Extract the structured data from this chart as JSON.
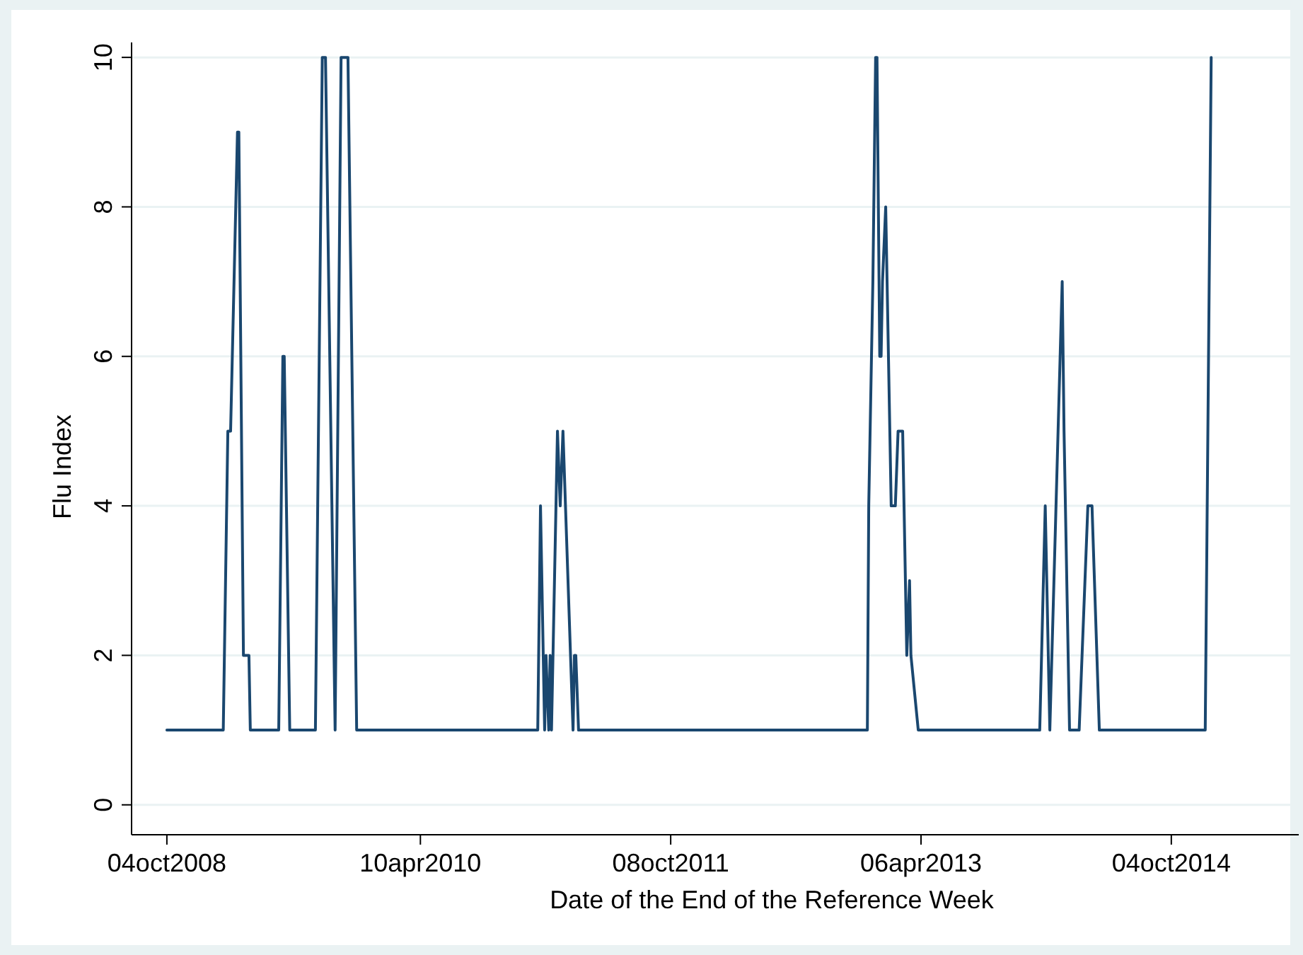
{
  "chart_data": {
    "type": "line",
    "xlabel": "Date of the End of the Reference Week",
    "ylabel": "Flu Index",
    "x": [
      "2008-10-04",
      "2009-02-04",
      "2009-02-14",
      "2009-02-20",
      "2009-03-07",
      "2009-03-10",
      "2009-03-20",
      "2009-04-01",
      "2009-04-04",
      "2009-06-05",
      "2009-06-14",
      "2009-06-17",
      "2009-06-29",
      "2009-08-24",
      "2009-09-08",
      "2009-09-15",
      "2009-10-06",
      "2009-10-19",
      "2009-11-03",
      "2009-11-22",
      "2010-12-22",
      "2010-12-28",
      "2011-01-06",
      "2011-01-09",
      "2011-01-15",
      "2011-01-18",
      "2011-01-21",
      "2011-02-03",
      "2011-02-09",
      "2011-02-15",
      "2011-03-09",
      "2011-03-12",
      "2011-03-15",
      "2011-03-21",
      "2012-12-10",
      "2012-12-13",
      "2012-12-22",
      "2012-12-28",
      "2012-12-31",
      "2013-01-03",
      "2013-01-06",
      "2013-01-09",
      "2013-01-12",
      "2013-01-19",
      "2013-01-22",
      "2013-01-28",
      "2013-01-31",
      "2013-02-09",
      "2013-02-15",
      "2013-02-25",
      "2013-02-28",
      "2013-03-06",
      "2013-03-12",
      "2013-03-15",
      "2013-03-31",
      "2013-12-21",
      "2014-01-02",
      "2014-01-12",
      "2014-01-21",
      "2014-01-30",
      "2014-02-08",
      "2014-02-12",
      "2014-02-24",
      "2014-03-17",
      "2014-04-05",
      "2014-04-14",
      "2014-04-30",
      "2014-12-17",
      "2014-12-30"
    ],
    "series": [
      {
        "color": "#1a476f",
        "values": [
          1,
          1,
          5,
          5,
          9,
          9,
          2,
          2,
          1,
          1,
          6,
          6,
          1,
          1,
          10,
          10,
          1,
          10,
          10,
          1,
          1,
          4,
          1,
          2,
          1,
          2,
          1,
          5,
          4,
          5,
          1,
          2,
          2,
          1,
          1,
          4,
          7,
          10,
          10,
          8,
          6,
          6,
          7,
          8,
          7,
          5,
          4,
          4,
          5,
          5,
          4,
          2,
          3,
          2,
          1,
          1,
          4,
          1,
          3,
          5,
          7,
          5,
          1,
          1,
          4,
          4,
          1,
          1,
          10
        ]
      }
    ],
    "xlim": [
      "2008-07-19",
      "2015-07-09"
    ],
    "xticks": [
      {
        "value": "2008-10-04",
        "label": "04oct2008"
      },
      {
        "value": "2010-04-10",
        "label": "10apr2010"
      },
      {
        "value": "2011-10-08",
        "label": "08oct2011"
      },
      {
        "value": "2013-04-06",
        "label": "06apr2013"
      },
      {
        "value": "2014-10-04",
        "label": "04oct2014"
      }
    ],
    "ylim": [
      -0.4,
      10.2
    ],
    "yticks": [
      0,
      2,
      4,
      6,
      8,
      10
    ],
    "grid": "y",
    "line_style": "solid",
    "marker": "none"
  }
}
